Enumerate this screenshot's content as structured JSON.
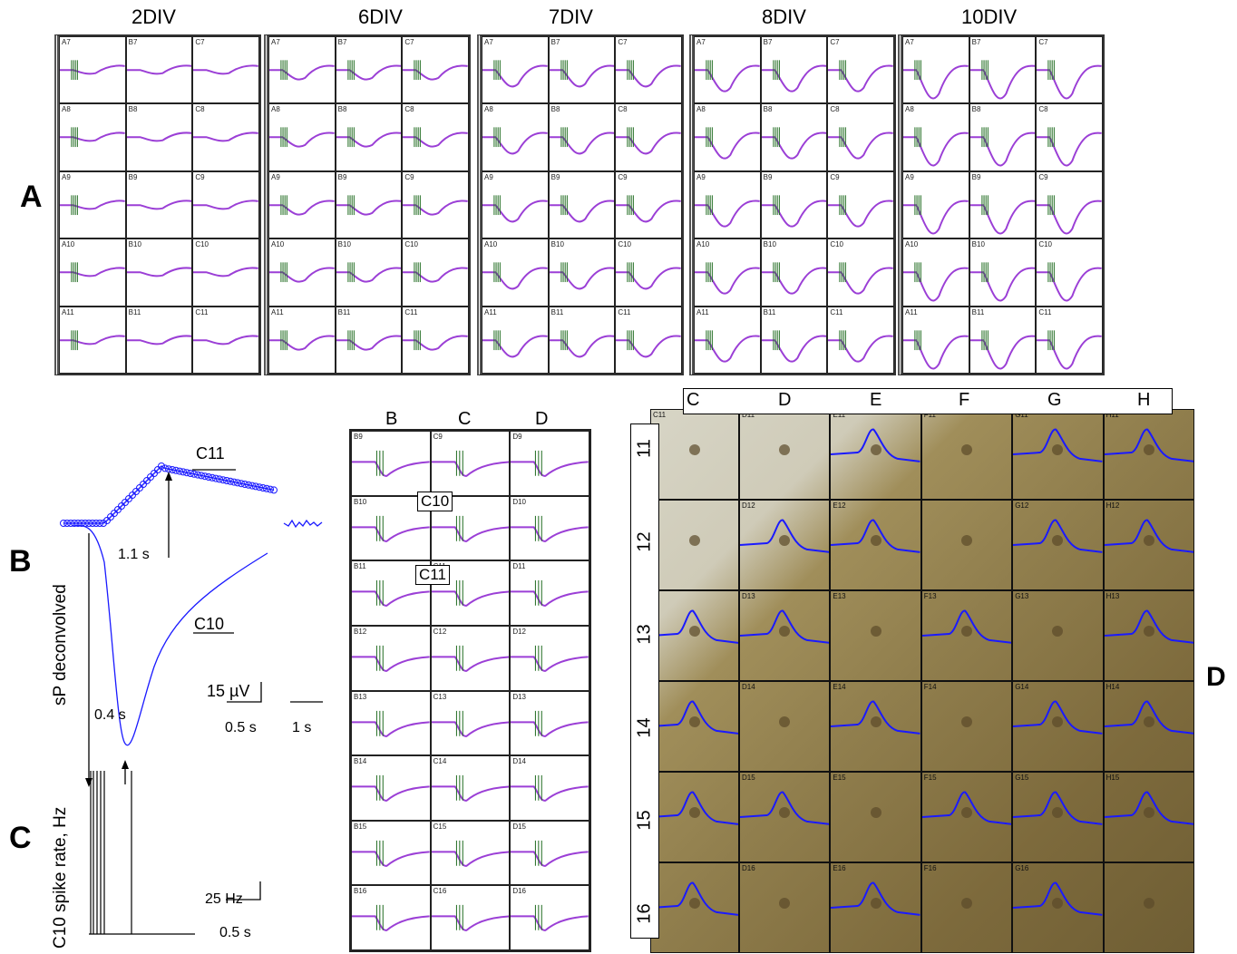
{
  "panel_a": {
    "letter": "A",
    "columns": [
      "2DIV",
      "6DIV",
      "7DIV",
      "8DIV",
      "10DIV"
    ],
    "cell_labels": [
      "A7",
      "B7",
      "C7",
      "A8",
      "B8",
      "C8",
      "A9",
      "B9",
      "C9",
      "A10",
      "B10",
      "C10",
      "A11",
      "B11",
      "C11"
    ]
  },
  "panel_b": {
    "letter": "B",
    "ylabel": "sP deconvolved",
    "trace_c11_label": "C11",
    "trace_c10_label": "C10",
    "delay_1": "1.1 s",
    "delay_2": "0.4 s",
    "scale_v": "15 µV",
    "scale_t1": "0.5 s",
    "scale_t2": "1 s"
  },
  "panel_c": {
    "letter": "C",
    "ylabel": "C10 spike rate, Hz",
    "scale_hz": "25 Hz",
    "scale_t": "0.5 s"
  },
  "panel_mid": {
    "columns": [
      "B",
      "C",
      "D"
    ],
    "cell_labels": [
      "B9",
      "C9",
      "D9",
      "B10",
      "C10",
      "D10",
      "B11",
      "C11",
      "D11",
      "B12",
      "C12",
      "D12",
      "B13",
      "C13",
      "D13",
      "B14",
      "C14",
      "D14",
      "B15",
      "C15",
      "D15",
      "B16",
      "C16",
      "D16"
    ],
    "box_c10": "C10",
    "box_c11": "C11"
  },
  "panel_d": {
    "letter": "D",
    "columns": [
      "C",
      "D",
      "E",
      "F",
      "G",
      "H"
    ],
    "rows": [
      "11",
      "12",
      "13",
      "14",
      "15",
      "16"
    ],
    "cell_labels": [
      "C11",
      "D11",
      "E11",
      "F11",
      "G11",
      "H11",
      "",
      "D12",
      "E12",
      "",
      "G12",
      "H12",
      "",
      "D13",
      "E13",
      "F13",
      "G13",
      "H13",
      "",
      "D14",
      "E14",
      "F14",
      "G14",
      "H14",
      "",
      "D15",
      "E15",
      "F15",
      "G15",
      "H15",
      "",
      "D16",
      "E16",
      "F16",
      "G16",
      ""
    ]
  },
  "colors": {
    "trace": "#9b3fd6",
    "spike": "#1f6b1f",
    "blue_trace": "#1a1aff"
  }
}
